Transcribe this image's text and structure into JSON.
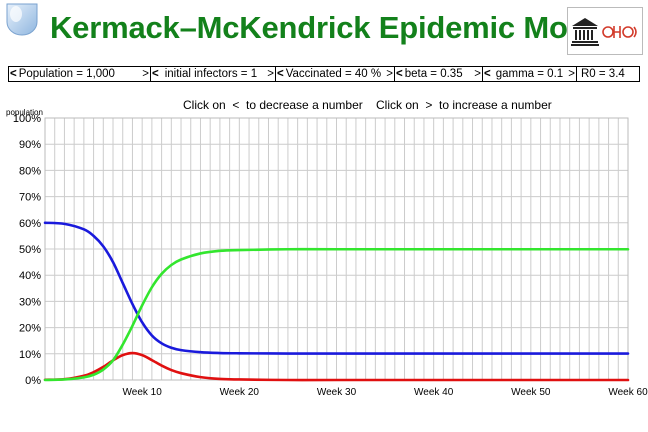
{
  "header": {
    "title": "Kermack–McKendrick Epidemic Model",
    "left_logo": "globe-logo-icon",
    "right_logo": "unesco-institution-logo"
  },
  "toolbar": {
    "params": [
      {
        "left": "<",
        "label": "Population = 1,000",
        "right": ">"
      },
      {
        "left": "<",
        "label": "initial infectors = 1",
        "right": ">"
      },
      {
        "left": "<",
        "label": "Vaccinated = 40 %",
        "right": ">"
      },
      {
        "left": "<",
        "label": "beta = 0.35",
        "right": ">"
      },
      {
        "left": "<",
        "label": "gamma = 0.1",
        "right": ">"
      }
    ],
    "r0": "R0 = 3.4"
  },
  "instructions": {
    "left": "Click on  <  to decrease a number",
    "right": "Click on  >  to increase a number"
  },
  "colors": {
    "title": "#13811b",
    "susceptible": "#1a1adc",
    "infected": "#e01010",
    "recovered": "#33e62e",
    "grid": "#cccccc"
  },
  "chart_data": {
    "type": "line",
    "ylabel": "population",
    "yticks": [
      "0%",
      "10%",
      "20%",
      "30%",
      "40%",
      "50%",
      "60%",
      "70%",
      "80%",
      "90%",
      "100%"
    ],
    "xticks": [
      {
        "week": 10,
        "label": "Week 10"
      },
      {
        "week": 20,
        "label": "Week 20"
      },
      {
        "week": 30,
        "label": "Week 30"
      },
      {
        "week": 40,
        "label": "Week 40"
      },
      {
        "week": 50,
        "label": "Week 50"
      },
      {
        "week": 60,
        "label": "Week 60"
      }
    ],
    "xlim": [
      0,
      60
    ],
    "ylim": [
      0,
      100
    ],
    "grid": true,
    "series": [
      {
        "key": "susceptible",
        "color": "#1a1adc",
        "x": [
          0,
          2,
          4,
          5,
          6,
          7,
          8,
          9,
          10,
          11,
          12,
          13,
          14,
          16,
          18,
          20,
          25,
          30,
          40,
          50,
          60
        ],
        "values": [
          60,
          59.6,
          57.5,
          55,
          51,
          45,
          37,
          29,
          22,
          17,
          14,
          12.3,
          11.4,
          10.6,
          10.3,
          10.2,
          10.1,
          10.1,
          10.1,
          10.1,
          10.1
        ]
      },
      {
        "key": "infected",
        "color": "#e01010",
        "x": [
          0,
          2,
          4,
          5,
          6,
          7,
          8,
          9,
          10,
          11,
          12,
          13,
          14,
          16,
          18,
          20,
          25,
          30,
          40,
          50,
          60
        ],
        "values": [
          0.1,
          0.3,
          1.6,
          3,
          5,
          7.5,
          9.5,
          10.3,
          9.5,
          7.6,
          5.5,
          3.8,
          2.6,
          1.1,
          0.4,
          0.2,
          0,
          0,
          0,
          0,
          0
        ]
      },
      {
        "key": "recovered",
        "color": "#33e62e",
        "x": [
          0,
          2,
          4,
          5,
          6,
          7,
          8,
          9,
          10,
          11,
          12,
          13,
          14,
          16,
          18,
          20,
          25,
          30,
          40,
          50,
          60
        ],
        "values": [
          0,
          0.2,
          1,
          2,
          4,
          7.5,
          13.5,
          20.7,
          28.5,
          35.4,
          40.5,
          43.9,
          46,
          48.3,
          49.3,
          49.6,
          49.9,
          49.9,
          49.9,
          49.9,
          49.9
        ]
      }
    ]
  }
}
